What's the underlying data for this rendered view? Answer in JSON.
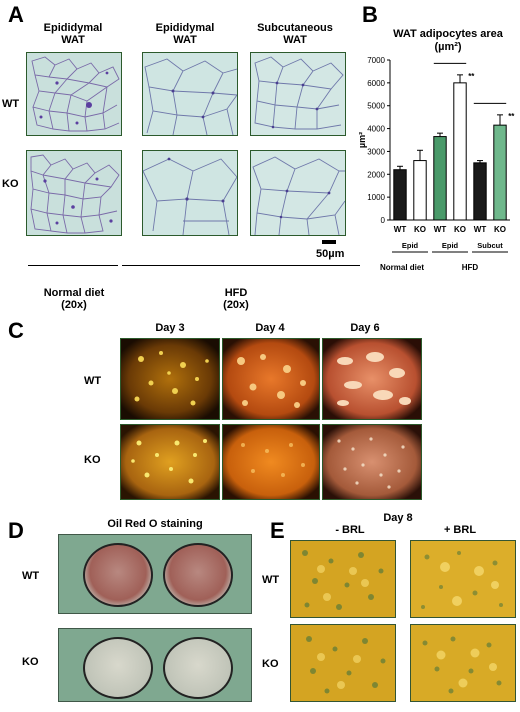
{
  "panelA": {
    "label": "A",
    "col_headers": [
      "Epididymal\nWAT",
      "Epididymal\nWAT",
      "Subcutaneous\nWAT"
    ],
    "rows": [
      "WT",
      "KO"
    ],
    "scale": "50µm",
    "groups": [
      "Normal diet\n(20x)",
      "HFD\n(20x)"
    ]
  },
  "panelB": {
    "label": "B",
    "title": "WAT adipocytes area",
    "unit": "(µm²)",
    "sig_marks": [
      "**",
      "**"
    ]
  },
  "chart_data": {
    "type": "bar",
    "title": "WAT adipocytes area",
    "ylabel": "µm²",
    "ylim": [
      0,
      7000
    ],
    "yticks": [
      0,
      1000,
      2000,
      3000,
      4000,
      5000,
      6000,
      7000
    ],
    "categories": [
      "WT",
      "KO",
      "WT",
      "KO",
      "WT",
      "KO"
    ],
    "values": [
      2200,
      2600,
      3650,
      6000,
      2500,
      4150
    ],
    "errors": [
      150,
      450,
      150,
      350,
      100,
      450
    ],
    "bar_colors": [
      "#1a1a1a",
      "#ffffff",
      "#4a9a6a",
      "#ffffff",
      "#1a1a1a",
      "#6fb88c"
    ],
    "tissue_labels": [
      "Epid",
      "Epid",
      "Subcut"
    ],
    "diet_labels": [
      "Normal diet",
      "HFD"
    ]
  },
  "panelC": {
    "label": "C",
    "col_headers": [
      "Day 3",
      "Day 4",
      "Day 6"
    ],
    "rows": [
      "WT",
      "KO"
    ]
  },
  "panelD": {
    "label": "D",
    "title": "Oil Red O staining",
    "rows": [
      "WT",
      "KO"
    ]
  },
  "panelE": {
    "label": "E",
    "day": "Day 8",
    "col_headers": [
      "- BRL",
      "+ BRL"
    ],
    "rows": [
      "WT",
      "KO"
    ]
  }
}
